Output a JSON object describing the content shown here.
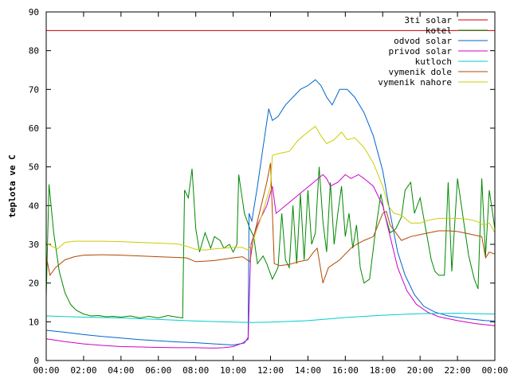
{
  "chart_data": {
    "type": "line",
    "title": "",
    "xlabel": "",
    "ylabel": "teplota ve C",
    "xlim": [
      0,
      24
    ],
    "ylim": [
      0,
      90
    ],
    "grid": false,
    "legend_position": "top-right",
    "x_ticks": [
      "00:00",
      "02:00",
      "04:00",
      "06:00",
      "08:00",
      "10:00",
      "12:00",
      "14:00",
      "16:00",
      "18:00",
      "20:00",
      "22:00",
      "00:00"
    ],
    "y_ticks": [
      "0",
      "10",
      "20",
      "30",
      "40",
      "50",
      "60",
      "70",
      "80",
      "90"
    ],
    "series": [
      {
        "name": "3ti solar",
        "color": "#cc0000",
        "points": [
          [
            0,
            85.2
          ],
          [
            24,
            85.2
          ]
        ]
      },
      {
        "name": "kotel",
        "color": "#008800",
        "points": [
          [
            0,
            16.5
          ],
          [
            0.15,
            45.5
          ],
          [
            0.4,
            33
          ],
          [
            0.7,
            23
          ],
          [
            1,
            17.5
          ],
          [
            1.3,
            14.5
          ],
          [
            1.6,
            13
          ],
          [
            2,
            12
          ],
          [
            2.4,
            11.5
          ],
          [
            2.8,
            11.6
          ],
          [
            3.2,
            11.3
          ],
          [
            3.6,
            11.4
          ],
          [
            4,
            11.2
          ],
          [
            4.5,
            11.5
          ],
          [
            5,
            11
          ],
          [
            5.5,
            11.4
          ],
          [
            6,
            11
          ],
          [
            6.5,
            11.6
          ],
          [
            7,
            11.2
          ],
          [
            7.3,
            11
          ],
          [
            7.4,
            44
          ],
          [
            7.6,
            42
          ],
          [
            7.8,
            49.5
          ],
          [
            8.0,
            34
          ],
          [
            8.2,
            28
          ],
          [
            8.5,
            33
          ],
          [
            8.8,
            29
          ],
          [
            9.0,
            32
          ],
          [
            9.3,
            31
          ],
          [
            9.5,
            29
          ],
          [
            9.8,
            30
          ],
          [
            10,
            28
          ],
          [
            10.2,
            30
          ],
          [
            10.3,
            48
          ],
          [
            10.6,
            38
          ],
          [
            10.9,
            34
          ],
          [
            11.1,
            32
          ],
          [
            11.3,
            25
          ],
          [
            11.6,
            27
          ],
          [
            11.8,
            25
          ],
          [
            12.1,
            21
          ],
          [
            12.4,
            24
          ],
          [
            12.6,
            38
          ],
          [
            12.8,
            26
          ],
          [
            13.0,
            24
          ],
          [
            13.2,
            40
          ],
          [
            13.4,
            25
          ],
          [
            13.6,
            43
          ],
          [
            13.8,
            26
          ],
          [
            14.0,
            44
          ],
          [
            14.2,
            30
          ],
          [
            14.4,
            33
          ],
          [
            14.6,
            50
          ],
          [
            14.8,
            36
          ],
          [
            15.0,
            28
          ],
          [
            15.2,
            46
          ],
          [
            15.4,
            30
          ],
          [
            15.6,
            38
          ],
          [
            15.8,
            45
          ],
          [
            16.0,
            32
          ],
          [
            16.2,
            38
          ],
          [
            16.4,
            29
          ],
          [
            16.6,
            35
          ],
          [
            16.8,
            24
          ],
          [
            17.0,
            20
          ],
          [
            17.3,
            21
          ],
          [
            17.6,
            33
          ],
          [
            17.9,
            43
          ],
          [
            18.1,
            38
          ],
          [
            18.4,
            33
          ],
          [
            18.7,
            34
          ],
          [
            19.0,
            37
          ],
          [
            19.2,
            44
          ],
          [
            19.5,
            46
          ],
          [
            19.7,
            38
          ],
          [
            20.0,
            42
          ],
          [
            20.3,
            34
          ],
          [
            20.6,
            26
          ],
          [
            20.8,
            23
          ],
          [
            21.0,
            22
          ],
          [
            21.3,
            22
          ],
          [
            21.5,
            46
          ],
          [
            21.7,
            23
          ],
          [
            22.0,
            47
          ],
          [
            22.3,
            37
          ],
          [
            22.6,
            27
          ],
          [
            22.9,
            21
          ],
          [
            23.1,
            18.5
          ],
          [
            23.3,
            47
          ],
          [
            23.5,
            27
          ],
          [
            23.7,
            44
          ],
          [
            24,
            34
          ]
        ]
      },
      {
        "name": "odvod solar",
        "color": "#0066cc",
        "points": [
          [
            0,
            7.8
          ],
          [
            1,
            7.3
          ],
          [
            2,
            6.7
          ],
          [
            3,
            6.2
          ],
          [
            4,
            5.8
          ],
          [
            5,
            5.4
          ],
          [
            6,
            5.1
          ],
          [
            7,
            4.8
          ],
          [
            8,
            4.6
          ],
          [
            9,
            4.3
          ],
          [
            10,
            4.0
          ],
          [
            10.6,
            4.5
          ],
          [
            10.8,
            6
          ],
          [
            10.85,
            38
          ],
          [
            11.0,
            36
          ],
          [
            11.3,
            45
          ],
          [
            11.6,
            55
          ],
          [
            11.9,
            65
          ],
          [
            12.1,
            62
          ],
          [
            12.4,
            63
          ],
          [
            12.8,
            66
          ],
          [
            13.2,
            68
          ],
          [
            13.6,
            70
          ],
          [
            14.0,
            71
          ],
          [
            14.4,
            72.5
          ],
          [
            14.7,
            71
          ],
          [
            15.0,
            68
          ],
          [
            15.3,
            66
          ],
          [
            15.7,
            70
          ],
          [
            16.1,
            70
          ],
          [
            16.5,
            68
          ],
          [
            17.0,
            64
          ],
          [
            17.5,
            58
          ],
          [
            18.0,
            49
          ],
          [
            18.4,
            38
          ],
          [
            18.8,
            28
          ],
          [
            19.2,
            22
          ],
          [
            19.7,
            17
          ],
          [
            20.2,
            14
          ],
          [
            20.8,
            12.5
          ],
          [
            21.5,
            11.5
          ],
          [
            22.5,
            10.8
          ],
          [
            23.5,
            10.3
          ],
          [
            24,
            10.2
          ]
        ]
      },
      {
        "name": "privod solar",
        "color": "#cc00cc",
        "points": [
          [
            0,
            5.6
          ],
          [
            1,
            4.9
          ],
          [
            2,
            4.3
          ],
          [
            3,
            3.9
          ],
          [
            4,
            3.6
          ],
          [
            5,
            3.5
          ],
          [
            6,
            3.4
          ],
          [
            7,
            3.3
          ],
          [
            8,
            3.3
          ],
          [
            9,
            3.2
          ],
          [
            9.5,
            3.3
          ],
          [
            10,
            3.6
          ],
          [
            10.5,
            4.5
          ],
          [
            10.8,
            5.5
          ],
          [
            10.95,
            30
          ],
          [
            11.3,
            35
          ],
          [
            11.8,
            40
          ],
          [
            12.1,
            45
          ],
          [
            12.3,
            38
          ],
          [
            12.8,
            40
          ],
          [
            13.3,
            42
          ],
          [
            13.8,
            44
          ],
          [
            14.3,
            46
          ],
          [
            14.8,
            48
          ],
          [
            15.0,
            47
          ],
          [
            15.2,
            45
          ],
          [
            15.6,
            46
          ],
          [
            16.0,
            48
          ],
          [
            16.3,
            47
          ],
          [
            16.7,
            48
          ],
          [
            17.0,
            47
          ],
          [
            17.5,
            45
          ],
          [
            18.0,
            40
          ],
          [
            18.4,
            32
          ],
          [
            18.8,
            24
          ],
          [
            19.3,
            18
          ],
          [
            19.8,
            14.5
          ],
          [
            20.4,
            12.5
          ],
          [
            21,
            11.3
          ],
          [
            22,
            10.3
          ],
          [
            23,
            9.5
          ],
          [
            24,
            9.0
          ]
        ]
      },
      {
        "name": "kutloch",
        "color": "#00cccc",
        "points": [
          [
            0,
            11.5
          ],
          [
            2,
            11.2
          ],
          [
            4,
            11
          ],
          [
            6,
            10.6
          ],
          [
            8,
            10.2
          ],
          [
            10,
            9.9
          ],
          [
            11,
            9.8
          ],
          [
            12,
            9.9
          ],
          [
            14,
            10.3
          ],
          [
            16,
            11.1
          ],
          [
            18,
            11.7
          ],
          [
            20,
            12.1
          ],
          [
            22,
            12.2
          ],
          [
            24,
            12.0
          ]
        ]
      },
      {
        "name": "vymenik dole",
        "color": "#b34700",
        "points": [
          [
            0,
            27
          ],
          [
            0.2,
            22
          ],
          [
            0.5,
            24
          ],
          [
            1,
            26
          ],
          [
            1.5,
            26.8
          ],
          [
            2,
            27.2
          ],
          [
            3,
            27.3
          ],
          [
            4,
            27.2
          ],
          [
            5,
            27
          ],
          [
            6,
            26.8
          ],
          [
            7,
            26.6
          ],
          [
            7.5,
            26.5
          ],
          [
            8,
            25.5
          ],
          [
            9,
            25.8
          ],
          [
            10,
            26.5
          ],
          [
            10.5,
            26.8
          ],
          [
            10.9,
            25.5
          ],
          [
            11.1,
            32
          ],
          [
            11.5,
            40
          ],
          [
            11.8,
            46
          ],
          [
            12.0,
            51
          ],
          [
            12.2,
            25
          ],
          [
            12.5,
            24.5
          ],
          [
            13,
            24.8
          ],
          [
            13.5,
            25.5
          ],
          [
            14,
            26
          ],
          [
            14.3,
            28
          ],
          [
            14.5,
            29
          ],
          [
            14.8,
            20
          ],
          [
            15.1,
            24
          ],
          [
            15.4,
            25
          ],
          [
            15.7,
            26
          ],
          [
            16,
            27.5
          ],
          [
            16.3,
            29
          ],
          [
            16.6,
            30
          ],
          [
            17,
            31
          ],
          [
            17.5,
            32
          ],
          [
            18,
            38
          ],
          [
            18.2,
            38.5
          ],
          [
            18.4,
            35
          ],
          [
            18.7,
            33
          ],
          [
            19,
            31
          ],
          [
            19.5,
            32
          ],
          [
            20,
            32.5
          ],
          [
            20.5,
            33
          ],
          [
            21,
            33.5
          ],
          [
            21.5,
            33.5
          ],
          [
            22,
            33.3
          ],
          [
            23,
            32.3
          ],
          [
            23.3,
            32
          ],
          [
            23.5,
            26.5
          ],
          [
            23.7,
            28
          ],
          [
            24,
            27.5
          ]
        ]
      },
      {
        "name": "vymenik nahore",
        "color": "#cccc00",
        "points": [
          [
            0,
            30.5
          ],
          [
            0.3,
            29.5
          ],
          [
            0.6,
            28.8
          ],
          [
            1,
            30.5
          ],
          [
            1.5,
            30.8
          ],
          [
            2,
            30.8
          ],
          [
            3,
            30.8
          ],
          [
            4,
            30.7
          ],
          [
            5,
            30.5
          ],
          [
            6,
            30.3
          ],
          [
            7,
            30.1
          ],
          [
            7.5,
            29.5
          ],
          [
            8,
            28.7
          ],
          [
            8.5,
            28.5
          ],
          [
            9,
            28.8
          ],
          [
            9.5,
            29
          ],
          [
            10,
            29.2
          ],
          [
            10.5,
            29.2
          ],
          [
            10.8,
            28.5
          ],
          [
            11,
            30
          ],
          [
            11.5,
            37
          ],
          [
            12.0,
            45
          ],
          [
            12.1,
            53
          ],
          [
            12.5,
            53.5
          ],
          [
            13,
            54
          ],
          [
            13.5,
            57
          ],
          [
            14,
            59
          ],
          [
            14.4,
            60.5
          ],
          [
            14.7,
            58
          ],
          [
            15,
            56
          ],
          [
            15.4,
            57
          ],
          [
            15.8,
            59
          ],
          [
            16.1,
            57
          ],
          [
            16.5,
            57.5
          ],
          [
            17,
            55
          ],
          [
            17.5,
            51
          ],
          [
            18,
            45
          ],
          [
            18.3,
            40
          ],
          [
            18.6,
            38
          ],
          [
            19,
            37.5
          ],
          [
            19.5,
            35.5
          ],
          [
            20,
            35.5
          ],
          [
            20.5,
            36.3
          ],
          [
            21,
            36.7
          ],
          [
            22,
            36.7
          ],
          [
            22.5,
            36.5
          ],
          [
            23,
            36
          ],
          [
            23.4,
            35
          ],
          [
            23.7,
            35.5
          ],
          [
            24,
            33
          ]
        ]
      }
    ]
  }
}
